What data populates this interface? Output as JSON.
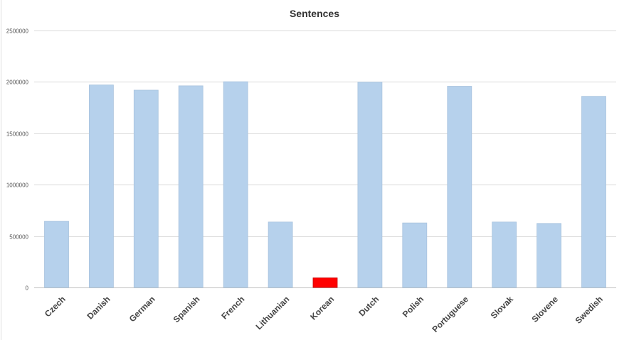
{
  "chart_data": {
    "type": "bar",
    "title": "Sentences",
    "xlabel": "",
    "ylabel": "",
    "categories": [
      "Czech",
      "Danish",
      "German",
      "Spanish",
      "French",
      "Lithuanian",
      "Korean",
      "Dutch",
      "Polish",
      "Portuguese",
      "Slovak",
      "Slovene",
      "Swedish"
    ],
    "values": [
      645000,
      1970000,
      1920000,
      1962000,
      2002000,
      637000,
      94000,
      1998000,
      628000,
      1958000,
      637000,
      623000,
      1860000
    ],
    "ylim": [
      0,
      2500000
    ],
    "yticks": [
      "0",
      "500000",
      "1000000",
      "1500000",
      "2000000",
      "2500000"
    ],
    "ytick_values": [
      0,
      500000,
      1000000,
      1500000,
      2000000,
      2500000
    ],
    "grid": true,
    "legend": "none",
    "colors": {
      "bar": "#b6d1ec",
      "bar_stroke": "#a9c3de",
      "highlight": "#ff0000",
      "highlight_stroke": "#c40000",
      "grid": "#d9d9d9",
      "axis": "#bfbfbf"
    },
    "highlight_category": "Korean"
  }
}
